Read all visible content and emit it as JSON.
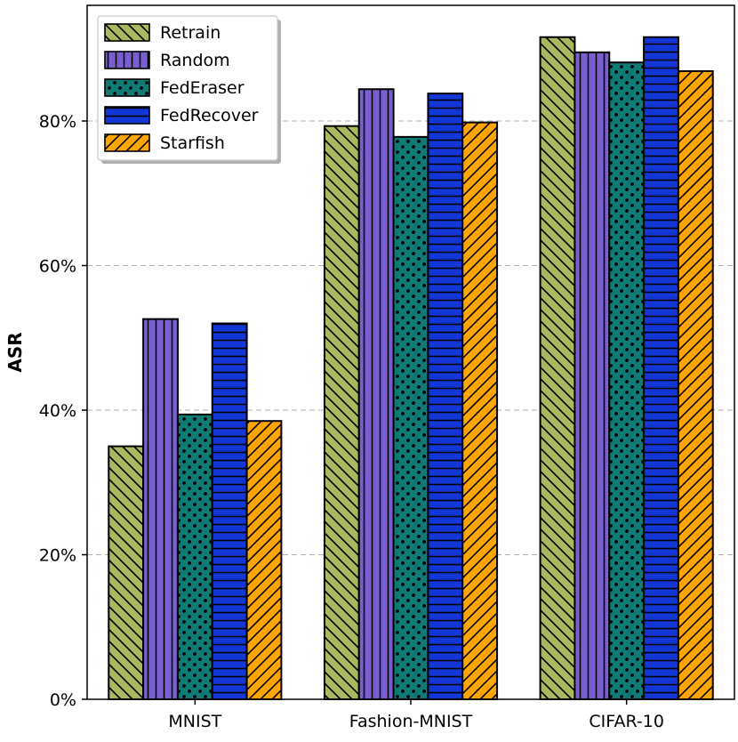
{
  "chart_data": {
    "type": "bar",
    "title": "",
    "xlabel": "",
    "ylabel": "ASR",
    "categories": [
      "MNIST",
      "Fashion-MNIST",
      "CIFAR-10"
    ],
    "series": [
      {
        "name": "Retrain",
        "values": [
          35.0,
          79.3,
          91.6
        ],
        "color": "#a9b85e",
        "hatch": "backslash"
      },
      {
        "name": "Random",
        "values": [
          52.6,
          84.4,
          89.5
        ],
        "color": "#7a5fd1",
        "hatch": "vertical"
      },
      {
        "name": "FedEraser",
        "values": [
          39.4,
          77.8,
          88.1
        ],
        "color": "#0e7c74",
        "hatch": "dots"
      },
      {
        "name": "FedRecover",
        "values": [
          52.0,
          83.8,
          91.6
        ],
        "color": "#1237d6",
        "hatch": "horizontal"
      },
      {
        "name": "Starfish",
        "values": [
          38.5,
          79.8,
          86.9
        ],
        "color": "#ffa500",
        "hatch": "slash"
      }
    ],
    "ylim": [
      0,
      96
    ],
    "yticks": [
      0,
      20,
      40,
      60,
      80
    ],
    "ytick_labels": [
      "0%",
      "20%",
      "40%",
      "60%",
      "80%"
    ],
    "grid": true,
    "legend_position": "top-left"
  }
}
